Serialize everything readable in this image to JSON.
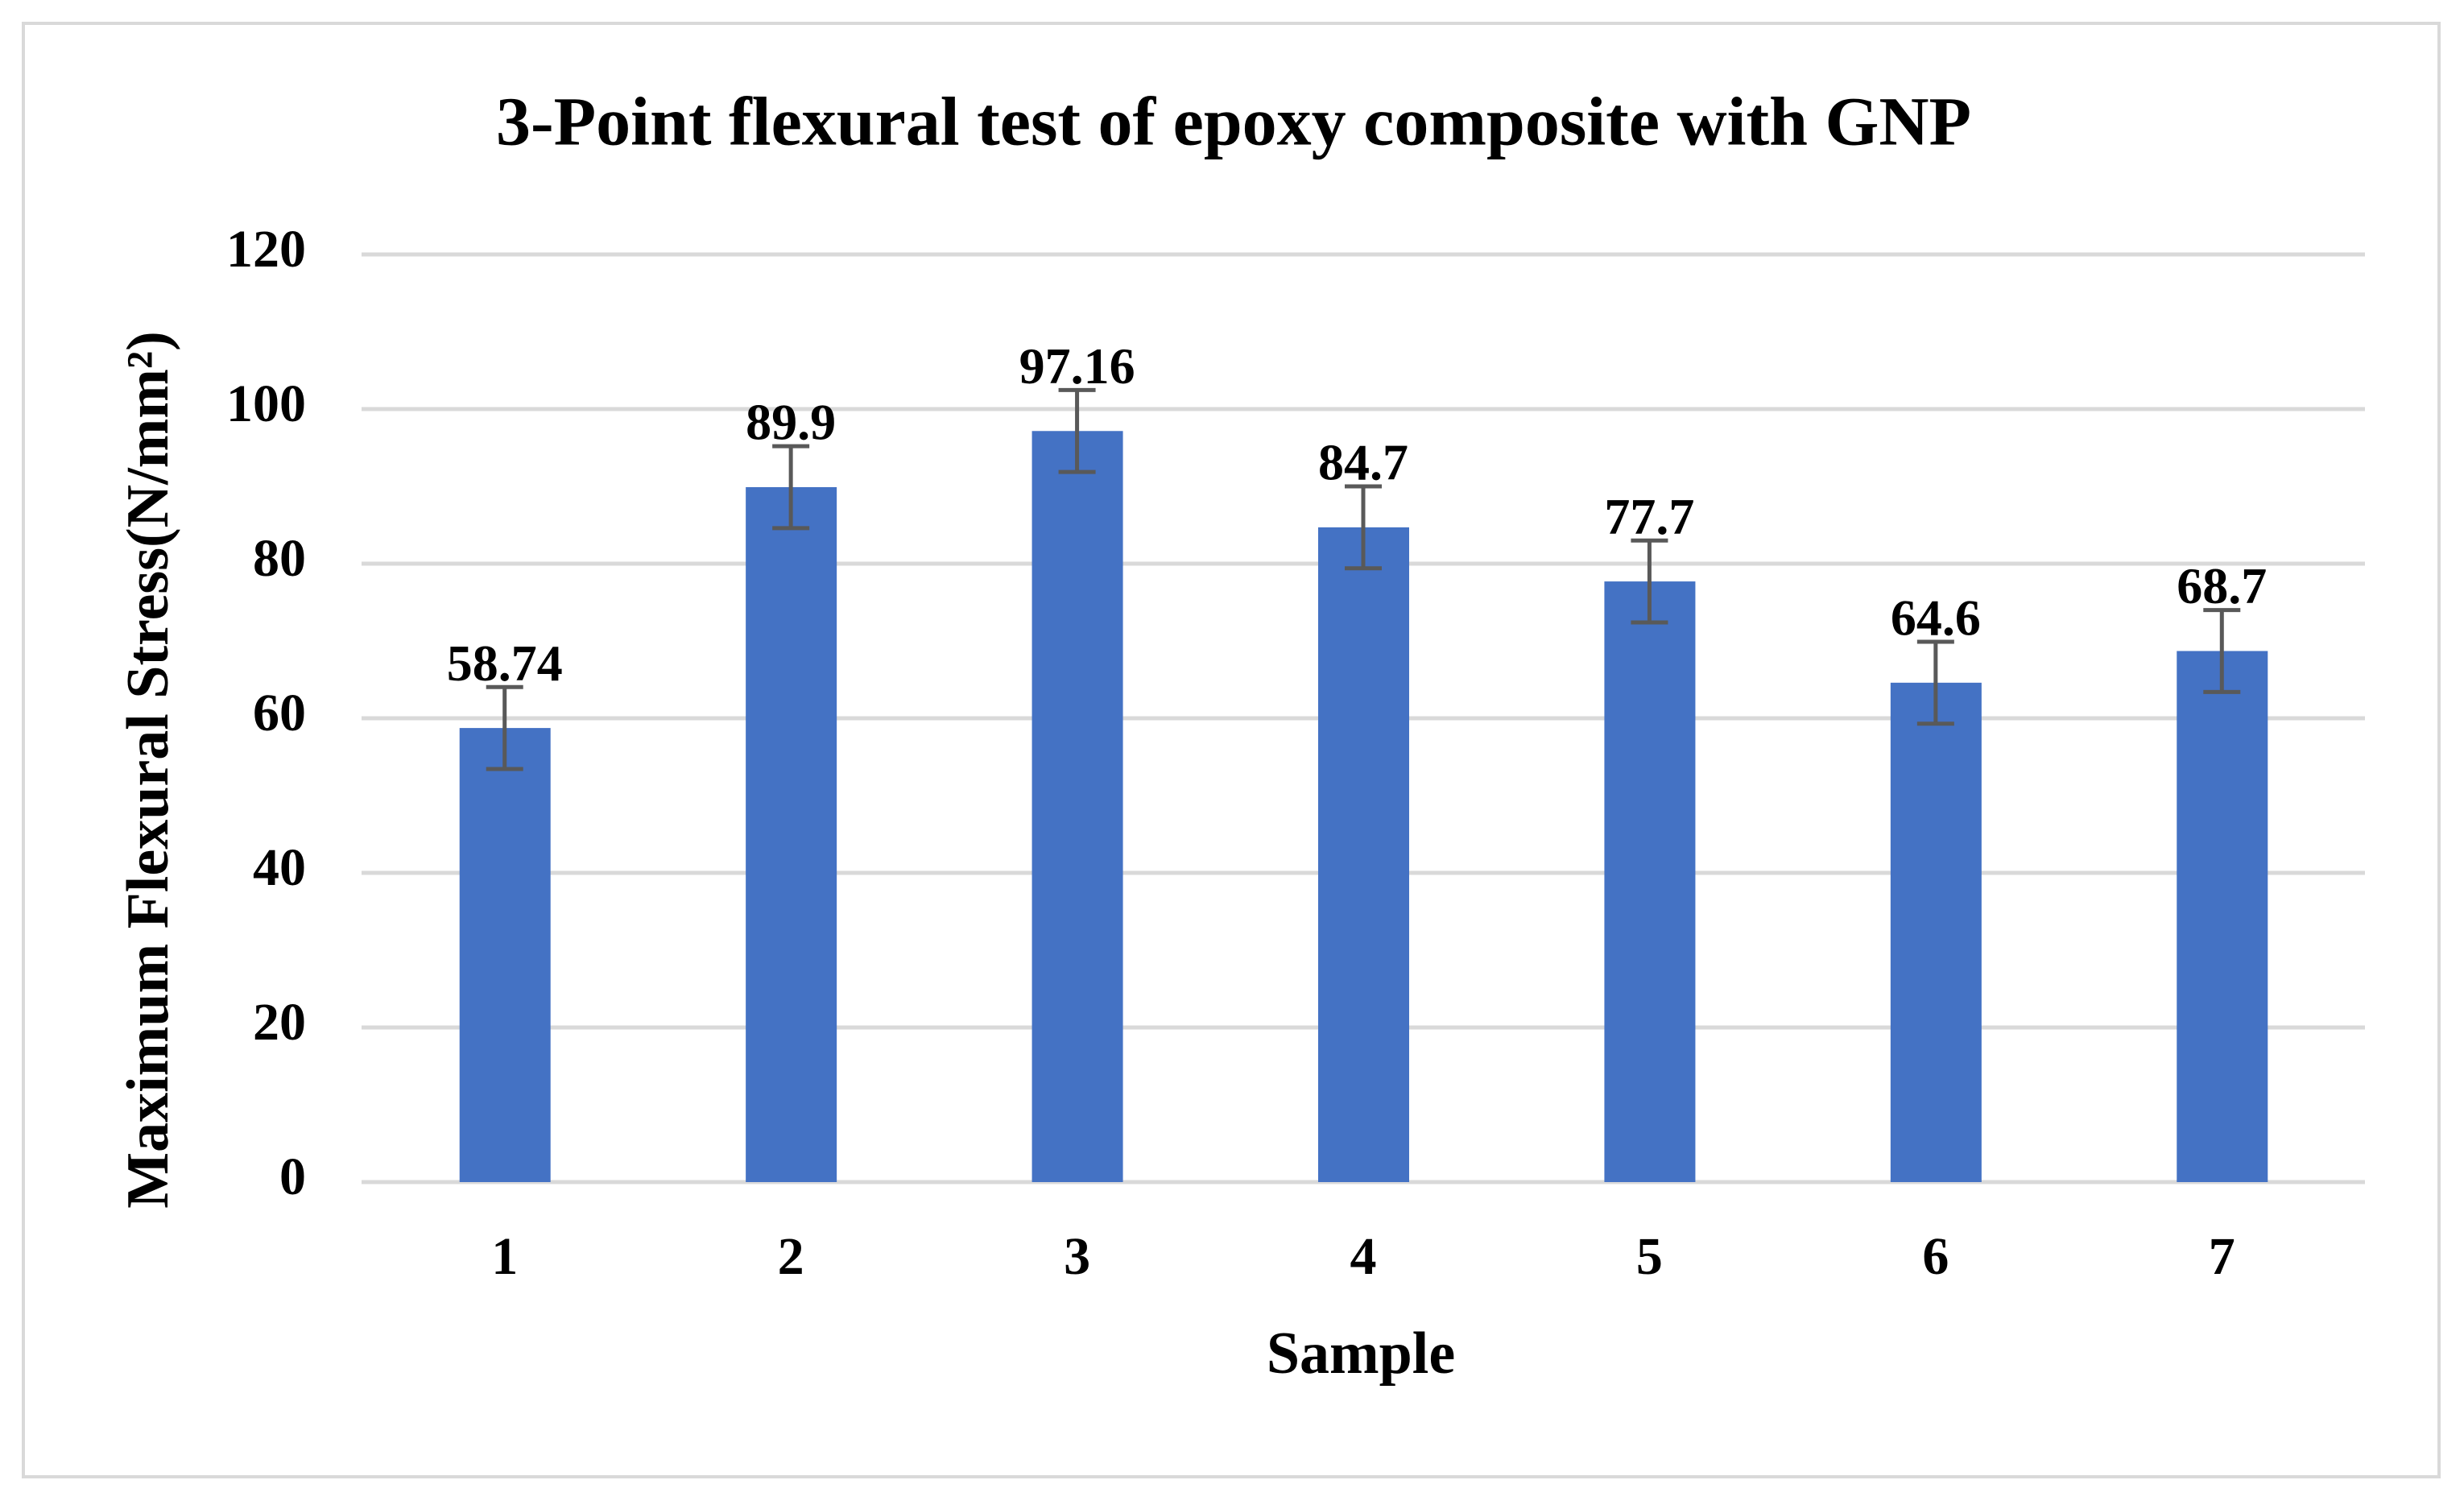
{
  "chart_data": {
    "type": "bar",
    "title": "3-Point flexural test of epoxy composite with GNP",
    "x_label": "Sample",
    "y_label": "Maximum Flexural Stress(N/mm²)",
    "categories": [
      "1",
      "2",
      "3",
      "4",
      "5",
      "6",
      "7"
    ],
    "values": [
      58.74,
      89.9,
      97.16,
      84.7,
      77.7,
      64.6,
      68.7
    ],
    "errors": [
      5.3,
      5.3,
      5.3,
      5.3,
      5.3,
      5.3,
      5.3
    ],
    "color": "#4472c4",
    "error_color": "#595959",
    "ylim": [
      0,
      120
    ],
    "yticks": [
      0,
      20,
      40,
      60,
      80,
      100,
      120
    ],
    "grid": true
  }
}
